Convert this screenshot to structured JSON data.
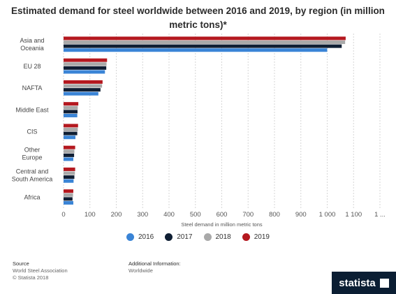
{
  "title": "Estimated demand for steel worldwide between 2016 and 2019, by region (in million metric tons)*",
  "chart_data": {
    "type": "bar",
    "orientation": "horizontal",
    "categories": [
      [
        "Asia and",
        "Oceania"
      ],
      [
        "EU 28"
      ],
      [
        "NAFTA"
      ],
      [
        "Middle East"
      ],
      [
        "CIS"
      ],
      [
        "Other",
        "Europe"
      ],
      [
        "Central and",
        "South America"
      ],
      [
        "Africa"
      ]
    ],
    "series": [
      {
        "name": "2016",
        "color": "#3a84d6",
        "values": [
          1000,
          157,
          132,
          52,
          45,
          37,
          38,
          37
        ]
      },
      {
        "name": "2017",
        "color": "#0f1e33",
        "values": [
          1055,
          162,
          140,
          53,
          52,
          40,
          41,
          34
        ]
      },
      {
        "name": "2018",
        "color": "#a9a9a9",
        "values": [
          1068,
          163,
          146,
          54,
          54,
          41,
          43,
          36
        ]
      },
      {
        "name": "2019",
        "color": "#b4181f",
        "values": [
          1070,
          165,
          148,
          56,
          55,
          44,
          44,
          37
        ]
      }
    ],
    "xlim": [
      0,
      1200
    ],
    "xticks": [
      "0",
      "100",
      "200",
      "300",
      "400",
      "500",
      "600",
      "700",
      "800",
      "900",
      "1 000",
      "1 100",
      "1 ..."
    ],
    "xlabel": "Steel demand in million metric tons",
    "grid": true,
    "legend_position": "bottom"
  },
  "footer": {
    "source_label": "Source",
    "source_lines": [
      "World Steel Association",
      "© Statista 2018"
    ],
    "info_label": "Additional Information:",
    "info_lines": [
      "Worldwide"
    ]
  },
  "brand": {
    "name": "statista"
  }
}
